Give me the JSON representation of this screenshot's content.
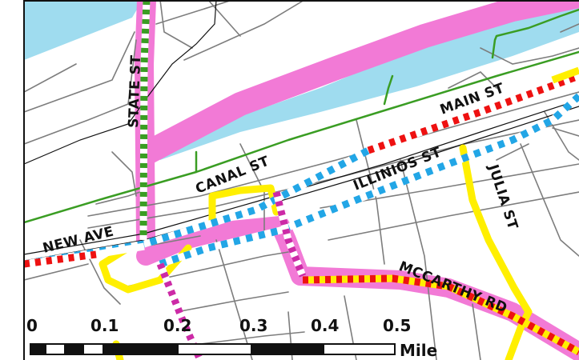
{
  "map": {
    "colors": {
      "background": "#ffffff",
      "water": "#9fdcef",
      "route_highlight": "#f27ad6",
      "trail": "#3a9d23",
      "street": "#7d7d7d",
      "railroad": "#111111",
      "route_yellow": "#ffef00",
      "dash_red": "#ee1111",
      "dash_blue": "#22a6e6",
      "dash_green": "#3a9d23",
      "dash_magenta": "#cc2aa6",
      "frame": "#111111"
    },
    "streets": {
      "state_st": "STATE ST",
      "canal_st": "CANAL ST",
      "main_st": "MAIN ST",
      "illinois_st": "ILLINIOS ST",
      "new_ave": "NEW AVE",
      "julia_st": "JULIA ST",
      "mccarthy_rd": "MCCARTHY RD"
    },
    "scale_bar": {
      "ticks": [
        "0",
        "0.1",
        "0.2",
        "0.3",
        "0.4",
        "0.5"
      ],
      "unit": "Mile"
    }
  }
}
